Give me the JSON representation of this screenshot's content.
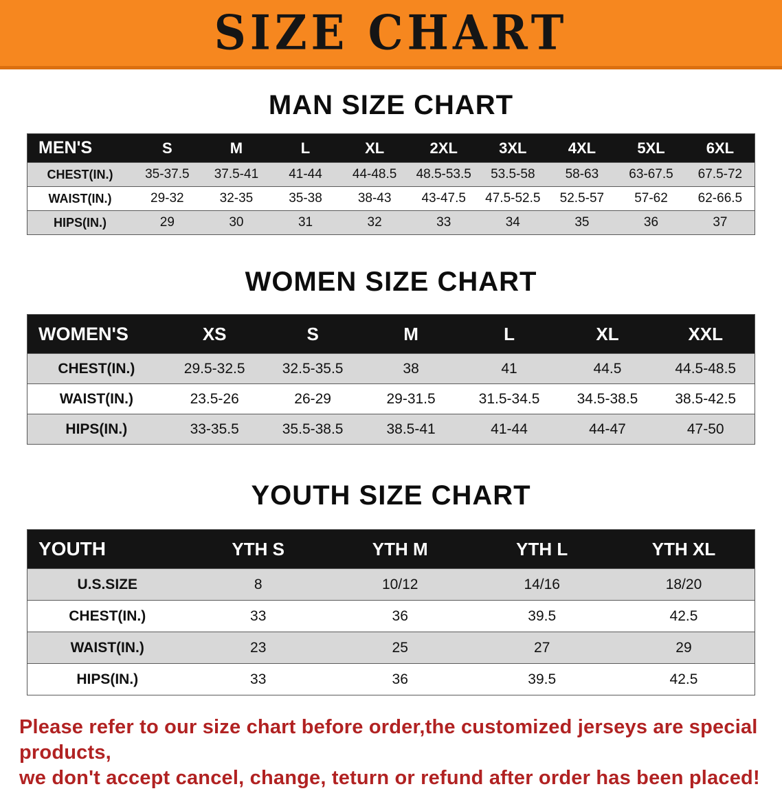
{
  "banner": {
    "title": "SIZE CHART",
    "bg": "#F6871F",
    "text_color": "#151515"
  },
  "colors": {
    "header_row_bg": "#141414",
    "header_row_text": "#FFFFFF",
    "alt_row_bg": "#D8D8D8",
    "notice_text": "#B12222"
  },
  "sections": [
    {
      "id": "men",
      "heading": "MAN SIZE CHART",
      "table": {
        "header": [
          "MEN'S",
          "S",
          "M",
          "L",
          "XL",
          "2XL",
          "3XL",
          "4XL",
          "5XL",
          "6XL"
        ],
        "rows": [
          {
            "label": "CHEST(IN.)",
            "values": [
              "35-37.5",
              "37.5-41",
              "41-44",
              "44-48.5",
              "48.5-53.5",
              "53.5-58",
              "58-63",
              "63-67.5",
              "67.5-72"
            ]
          },
          {
            "label": "WAIST(IN.)",
            "values": [
              "29-32",
              "32-35",
              "35-38",
              "38-43",
              "43-47.5",
              "47.5-52.5",
              "52.5-57",
              "57-62",
              "62-66.5"
            ]
          },
          {
            "label": "HIPS(IN.)",
            "values": [
              "29",
              "30",
              "31",
              "32",
              "33",
              "34",
              "35",
              "36",
              "37"
            ]
          }
        ]
      }
    },
    {
      "id": "women",
      "heading": "WOMEN SIZE CHART",
      "table": {
        "header": [
          "WOMEN'S",
          "XS",
          "S",
          "M",
          "L",
          "XL",
          "XXL"
        ],
        "rows": [
          {
            "label": "CHEST(IN.)",
            "values": [
              "29.5-32.5",
              "32.5-35.5",
              "38",
              "41",
              "44.5",
              "44.5-48.5"
            ]
          },
          {
            "label": "WAIST(IN.)",
            "values": [
              "23.5-26",
              "26-29",
              "29-31.5",
              "31.5-34.5",
              "34.5-38.5",
              "38.5-42.5"
            ]
          },
          {
            "label": "HIPS(IN.)",
            "values": [
              "33-35.5",
              "35.5-38.5",
              "38.5-41",
              "41-44",
              "44-47",
              "47-50"
            ]
          }
        ]
      }
    },
    {
      "id": "youth",
      "heading": "YOUTH SIZE CHART",
      "table": {
        "header": [
          "YOUTH",
          "YTH S",
          "YTH M",
          "YTH L",
          "YTH XL"
        ],
        "rows": [
          {
            "label": "U.S.SIZE",
            "values": [
              "8",
              "10/12",
              "14/16",
              "18/20"
            ]
          },
          {
            "label": "CHEST(IN.)",
            "values": [
              "33",
              "36",
              "39.5",
              "42.5"
            ]
          },
          {
            "label": "WAIST(IN.)",
            "values": [
              "23",
              "25",
              "27",
              "29"
            ]
          },
          {
            "label": "HIPS(IN.)",
            "values": [
              "33",
              "36",
              "39.5",
              "42.5"
            ]
          }
        ]
      }
    }
  ],
  "footer": {
    "line1": "Please refer to our size chart before order,the customized jerseys are special products,",
    "line2": "we don't accept cancel, change, teturn or refund after order has been placed!"
  }
}
